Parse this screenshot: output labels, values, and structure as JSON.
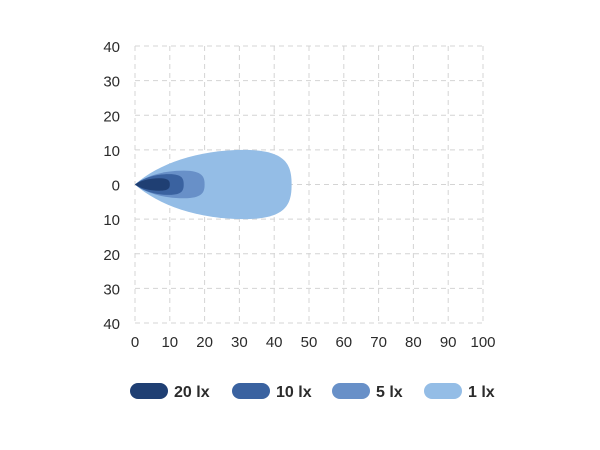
{
  "chart_data": {
    "type": "area",
    "title": "",
    "xlabel": "",
    "ylabel": "",
    "xlim": [
      0,
      100
    ],
    "ylim": [
      -40,
      40
    ],
    "x_ticks": [
      0,
      10,
      20,
      30,
      40,
      50,
      60,
      70,
      80,
      90,
      100
    ],
    "y_ticks": [
      40,
      30,
      20,
      10,
      0,
      -10,
      -20,
      -30,
      -40
    ],
    "y_tick_labels": [
      "40",
      "30",
      "20",
      "10",
      "0",
      "10",
      "20",
      "30",
      "40"
    ],
    "grid": true,
    "legend_placement": "bottom",
    "series": [
      {
        "name": "1 lx",
        "reach": 45,
        "half_width": 10,
        "color": "#94bde6"
      },
      {
        "name": "5 lx",
        "reach": 20,
        "half_width": 4,
        "color": "#6890c8"
      },
      {
        "name": "10 lx",
        "reach": 14,
        "half_width": 3,
        "color": "#3a62a0"
      },
      {
        "name": "20 lx",
        "reach": 10,
        "half_width": 1.8,
        "color": "#1f3f73"
      }
    ],
    "legend": [
      {
        "label": "20 lx",
        "color": "#1f3f73"
      },
      {
        "label": "10 lx",
        "color": "#3a62a0"
      },
      {
        "label": "5 lx",
        "color": "#6890c8"
      },
      {
        "label": "1 lx",
        "color": "#94bde6"
      }
    ]
  }
}
